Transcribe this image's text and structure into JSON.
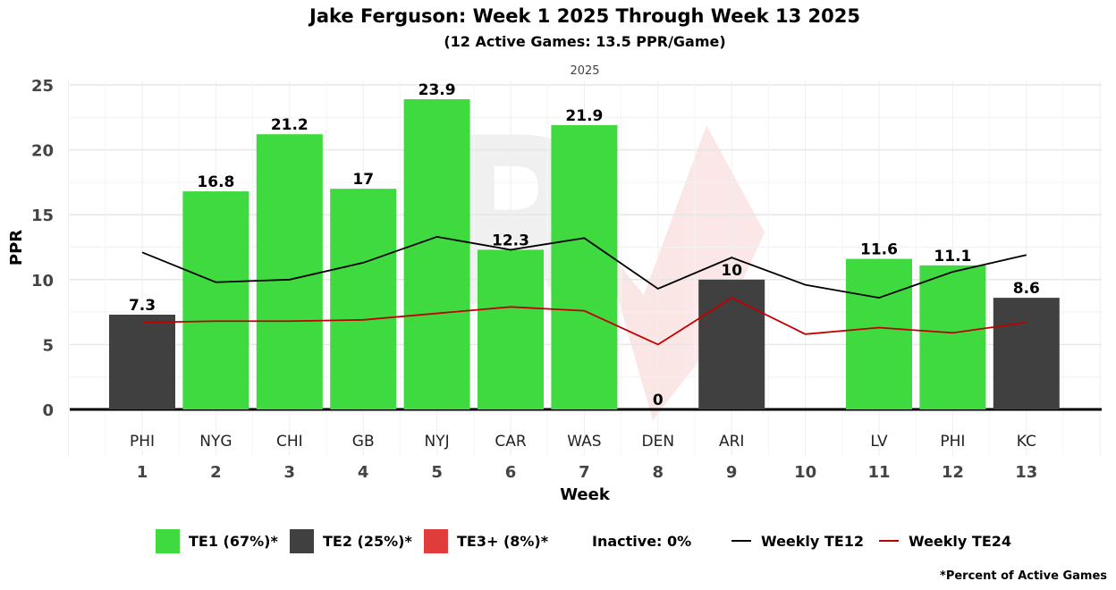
{
  "chart_data": {
    "type": "bar",
    "title": "Jake Ferguson: Week 1 2025 Through Week 13 2025",
    "subtitle": "(12 Active Games: 13.5 PPR/Game)",
    "facet_label": "2025",
    "xlabel": "Week",
    "ylabel": "PPR",
    "ylim": [
      0,
      25
    ],
    "yticks": [
      0,
      5,
      10,
      15,
      20,
      25
    ],
    "grid": true,
    "weeks": [
      1,
      2,
      3,
      4,
      5,
      6,
      7,
      8,
      9,
      10,
      11,
      12,
      13
    ],
    "opponents": [
      "PHI",
      "NYG",
      "CHI",
      "GB",
      "NYJ",
      "CAR",
      "WAS",
      "DEN",
      "ARI",
      "",
      "LV",
      "PHI",
      "KC"
    ],
    "values": [
      7.3,
      16.8,
      21.2,
      17,
      23.9,
      12.3,
      21.9,
      0,
      10,
      null,
      11.6,
      11.1,
      8.6
    ],
    "value_labels": [
      "7.3",
      "16.8",
      "21.2",
      "17",
      "23.9",
      "12.3",
      "21.9",
      "0",
      "10",
      "",
      "11.6",
      "11.1",
      "8.6"
    ],
    "tiers": [
      "TE2",
      "TE1",
      "TE1",
      "TE1",
      "TE1",
      "TE1",
      "TE1",
      "TE3+",
      "TE2",
      "Inactive",
      "TE1",
      "TE1",
      "TE2"
    ],
    "series": [
      {
        "name": "Weekly TE12",
        "color": "#000000",
        "values": [
          12.1,
          9.8,
          10.0,
          11.3,
          13.3,
          12.3,
          13.2,
          9.3,
          11.7,
          9.6,
          8.6,
          10.6,
          11.9
        ]
      },
      {
        "name": "Weekly TE24",
        "color": "#c00000",
        "values": [
          6.7,
          6.8,
          6.8,
          6.9,
          7.4,
          7.9,
          7.6,
          5.0,
          8.6,
          5.8,
          6.3,
          5.9,
          6.7
        ]
      }
    ],
    "tier_colors": {
      "TE1": "#3fd940",
      "TE2": "#404040",
      "TE3+": "#e03c3c"
    },
    "legend": {
      "position": "bottom",
      "items": [
        {
          "label": "TE1 (67%)*",
          "kind": "box",
          "color": "#3fd940"
        },
        {
          "label": "TE2 (25%)*",
          "kind": "box",
          "color": "#404040"
        },
        {
          "label": "TE3+ (8%)*",
          "kind": "box",
          "color": "#e03c3c"
        },
        {
          "label": "Inactive: 0%",
          "kind": "none"
        },
        {
          "label": "Weekly TE12",
          "kind": "line",
          "color": "#000000"
        },
        {
          "label": "Weekly TE24",
          "kind": "line",
          "color": "#c00000"
        }
      ]
    },
    "footnote": "*Percent of Active Games"
  }
}
